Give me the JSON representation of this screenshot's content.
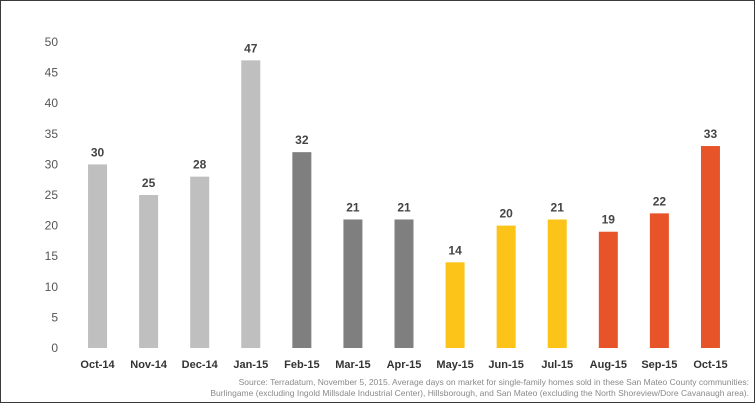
{
  "chart_data": {
    "type": "bar",
    "categories": [
      "Oct-14",
      "Nov-14",
      "Dec-14",
      "Jan-15",
      "Feb-15",
      "Mar-15",
      "Apr-15",
      "May-15",
      "Jun-15",
      "Jul-15",
      "Aug-15",
      "Sep-15",
      "Oct-15"
    ],
    "values": [
      30,
      25,
      28,
      47,
      32,
      21,
      21,
      14,
      20,
      21,
      19,
      22,
      33
    ],
    "bar_colors": [
      "#bfbfbf",
      "#bfbfbf",
      "#bfbfbf",
      "#bfbfbf",
      "#7f7f7f",
      "#7f7f7f",
      "#7f7f7f",
      "#fcc419",
      "#fcc419",
      "#fcc419",
      "#e8542a",
      "#e8542a",
      "#e8542a"
    ],
    "ylim": [
      0,
      50
    ],
    "yticks": [
      0,
      5,
      10,
      15,
      20,
      25,
      30,
      35,
      40,
      45,
      50
    ],
    "grid": false,
    "title": "",
    "xlabel": "",
    "ylabel": ""
  },
  "source_lines": [
    "Source: Terradatum, November 5, 2015. Average days on market for single-family homes sold in these San Mateo County communities:",
    "Burlingame (excluding Ingold Millsdale Industrial Center), Hillsborough, and San Mateo (excluding the North Shoreview/Dore Cavanaugh area)."
  ]
}
